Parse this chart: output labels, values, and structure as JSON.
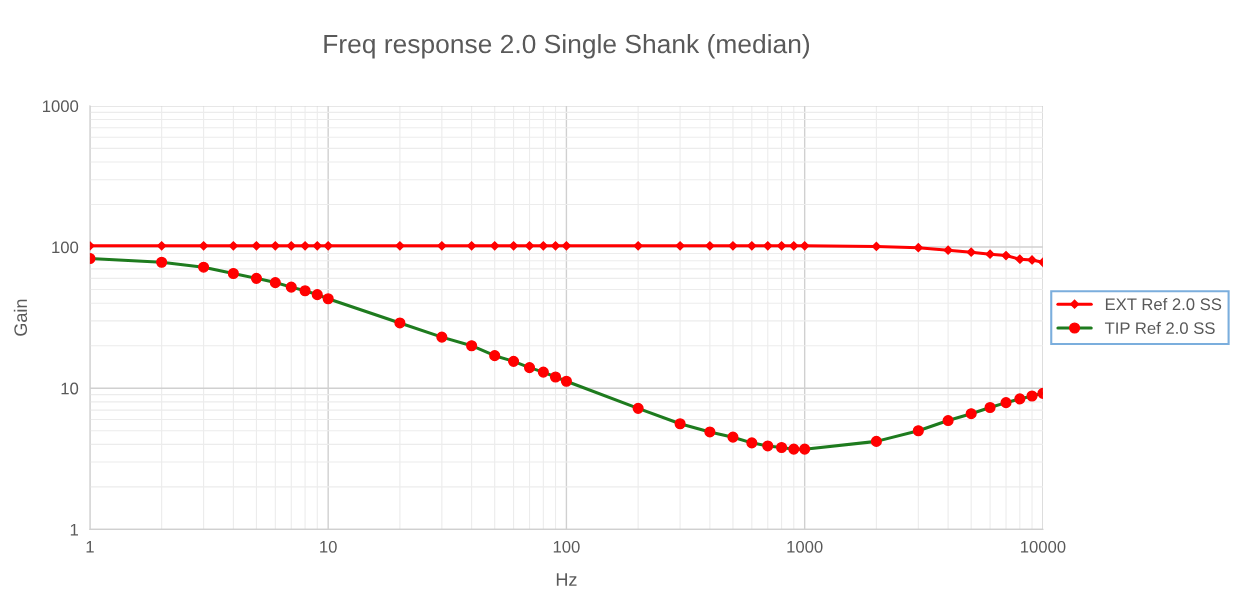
{
  "chart_data": {
    "type": "line",
    "title": "Freq response 2.0 Single Shank (median)",
    "xlabel": "Hz",
    "ylabel": "Gain",
    "x": [
      1,
      2,
      3,
      4,
      5,
      6,
      7,
      8,
      9,
      10,
      20,
      30,
      40,
      50,
      60,
      70,
      80,
      90,
      100,
      200,
      300,
      400,
      500,
      600,
      700,
      800,
      900,
      1000,
      2000,
      3000,
      4000,
      5000,
      6000,
      7000,
      8000,
      9000,
      10000
    ],
    "series": [
      {
        "name": "EXT Ref 2.0 SS",
        "color": "#ff0000",
        "marker": "diamond",
        "values": [
          102,
          102,
          102,
          102,
          102,
          102,
          102,
          102,
          102,
          102,
          102,
          102,
          102,
          102,
          102,
          102,
          102,
          102,
          102,
          102,
          102,
          102,
          102,
          102,
          102,
          102,
          102,
          102,
          101,
          99,
          95,
          92,
          89,
          87,
          82,
          81,
          78
        ]
      },
      {
        "name": "TIP Ref 2.0 SS",
        "color": "#1e7b1e",
        "marker": "circle",
        "values": [
          83,
          78,
          72,
          65,
          60,
          56,
          52,
          49,
          46,
          43,
          29,
          23,
          20,
          17,
          15.5,
          14,
          13,
          12,
          11.2,
          7.2,
          5.6,
          4.9,
          4.5,
          4.1,
          3.9,
          3.8,
          3.7,
          3.7,
          4.2,
          5.0,
          5.9,
          6.6,
          7.3,
          7.9,
          8.4,
          8.8,
          9.2
        ]
      }
    ],
    "log": "xy",
    "xlim": [
      1,
      10000
    ],
    "xticks": [
      1,
      10,
      100,
      1000,
      10000
    ],
    "ylim": [
      1,
      1000
    ],
    "yticks": [
      1,
      10,
      100,
      1000
    ],
    "grid": true,
    "legend": "right"
  }
}
